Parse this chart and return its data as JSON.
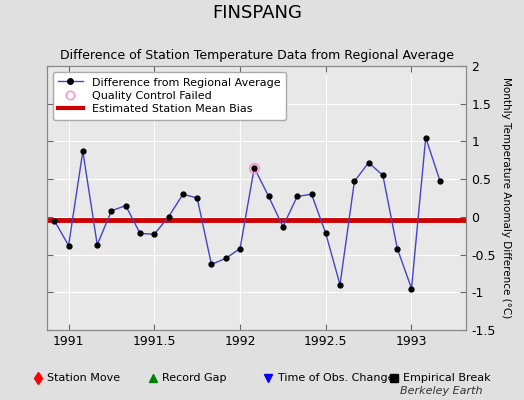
{
  "title": "FINSPANG",
  "subtitle": "Difference of Station Temperature Data from Regional Average",
  "ylabel": "Monthly Temperature Anomaly Difference (°C)",
  "xlim": [
    1990.875,
    1993.32
  ],
  "ylim": [
    -1.5,
    2.0
  ],
  "yticks": [
    -1.5,
    -1.0,
    -0.5,
    0.0,
    0.5,
    1.0,
    1.5,
    2.0
  ],
  "yticklabels": [
    "-1.5",
    "-1",
    "-0.5",
    "0",
    "0.5",
    "1",
    "1.5",
    "2"
  ],
  "xticks": [
    1991.0,
    1991.5,
    1992.0,
    1992.5,
    1993.0
  ],
  "xticklabels": [
    "1991",
    "1991.5",
    "1992",
    "1992.5",
    "1993"
  ],
  "bias_level": -0.04,
  "line_color": "#4444cc",
  "marker_color": "black",
  "bias_color": "#cc0000",
  "bg_color": "#e0e0e0",
  "plot_bg_color": "#e8e8e8",
  "grid_color": "#ffffff",
  "qc_fail_x": [
    1992.083
  ],
  "qc_fail_y": [
    0.65
  ],
  "x": [
    1990.917,
    1991.0,
    1991.083,
    1991.167,
    1991.25,
    1991.333,
    1991.417,
    1991.5,
    1991.583,
    1991.667,
    1991.75,
    1991.833,
    1991.917,
    1992.0,
    1992.083,
    1992.167,
    1992.25,
    1992.333,
    1992.417,
    1992.5,
    1992.583,
    1992.667,
    1992.75,
    1992.833,
    1992.917,
    1993.0,
    1993.083,
    1993.167
  ],
  "y": [
    -0.05,
    -0.38,
    0.87,
    -0.37,
    0.08,
    0.15,
    -0.22,
    -0.23,
    0.0,
    0.3,
    0.25,
    -0.63,
    -0.55,
    -0.42,
    0.65,
    0.27,
    -0.13,
    0.27,
    0.3,
    -0.22,
    -0.9,
    0.47,
    0.72,
    0.55,
    -0.42,
    -0.95,
    1.05,
    0.47
  ],
  "watermark": "Berkeley Earth",
  "title_fontsize": 13,
  "subtitle_fontsize": 9,
  "tick_fontsize": 9,
  "legend_fontsize": 8,
  "watermark_fontsize": 8
}
